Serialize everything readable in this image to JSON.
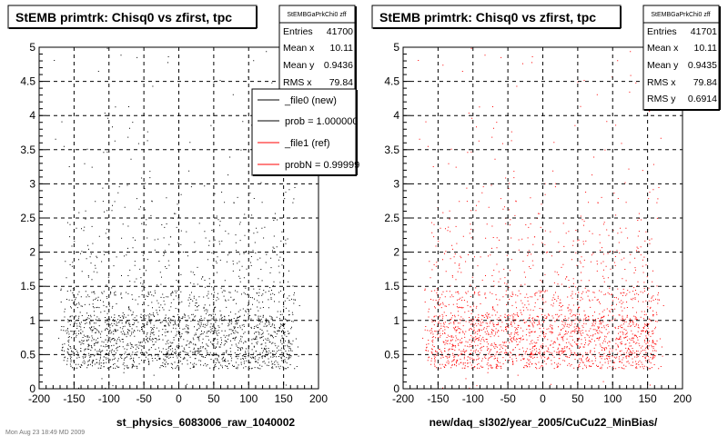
{
  "left_panel": {
    "title": "StEMB primtrk: Chisq0 vs zfirst, tpc",
    "xlabel": "st_physics_6083006_raw_1040002",
    "stats": {
      "name": "StEMBGaPrkChi0 zff",
      "rows": [
        {
          "label": "Entries",
          "value": "41700"
        },
        {
          "label": "Mean x",
          "value": "10.11"
        },
        {
          "label": "Mean y",
          "value": "0.9436"
        },
        {
          "label": "RMS x",
          "value": "79.84"
        }
      ]
    },
    "legend": [
      {
        "label": "_file0 (new)",
        "color": "#000000"
      },
      {
        "label": "prob = 1.000000",
        "color": "#000000"
      },
      {
        "label": "_file1 (ref)",
        "color": "#ff0000"
      },
      {
        "label": "probN = 0.99999",
        "color": "#ff0000"
      }
    ],
    "footer": "Mon Aug 23 18:49 MD 2009"
  },
  "right_panel": {
    "title": "StEMB primtrk: Chisq0 vs zfirst, tpc",
    "xlabel": "new/daq_sl302/year_2005/CuCu22_MinBias/",
    "stats": {
      "name": "StEMBGaPrkChi0 zff",
      "rows": [
        {
          "label": "Entries",
          "value": "41701"
        },
        {
          "label": "Mean x",
          "value": "10.11"
        },
        {
          "label": "Mean y",
          "value": "0.9435"
        },
        {
          "label": "RMS x",
          "value": "79.84"
        },
        {
          "label": "RMS y",
          "value": "0.6914"
        }
      ]
    }
  },
  "chart_data": [
    {
      "type": "scatter",
      "title": "StEMB primtrk: Chisq0 vs zfirst, tpc",
      "xlabel": "st_physics_6083006_raw_1040002",
      "ylabel": "",
      "xlim": [
        -200,
        200
      ],
      "ylim": [
        0,
        5
      ],
      "xticks": [
        -200,
        -150,
        -100,
        -50,
        0,
        50,
        100,
        150,
        200
      ],
      "yticks": [
        0,
        0.5,
        1,
        1.5,
        2,
        2.5,
        3,
        3.5,
        4,
        4.5,
        5
      ],
      "grid": true,
      "marker_color": "#000000",
      "legend_placement": "top-right",
      "series": [
        {
          "name": "_file0 (new)",
          "entries": 41700,
          "mean_x": 10.11,
          "mean_y": 0.9436,
          "rms_x": 79.84,
          "core_x": [
            -165,
            165
          ],
          "core_y": [
            0.25,
            1.5
          ]
        }
      ]
    },
    {
      "type": "scatter",
      "title": "StEMB primtrk: Chisq0 vs zfirst, tpc",
      "xlabel": "new/daq_sl302/year_2005/CuCu22_MinBias/",
      "ylabel": "",
      "xlim": [
        -200,
        200
      ],
      "ylim": [
        0,
        5
      ],
      "xticks": [
        -200,
        -150,
        -100,
        -50,
        0,
        50,
        100,
        150,
        200
      ],
      "yticks": [
        0,
        0.5,
        1,
        1.5,
        2,
        2.5,
        3,
        3.5,
        4,
        4.5,
        5
      ],
      "grid": true,
      "marker_color": "#ff0000",
      "series": [
        {
          "name": "_file1 (ref)",
          "entries": 41701,
          "mean_x": 10.11,
          "mean_y": 0.9435,
          "rms_x": 79.84,
          "rms_y": 0.6914,
          "core_x": [
            -165,
            165
          ],
          "core_y": [
            0.25,
            1.5
          ]
        }
      ]
    }
  ]
}
